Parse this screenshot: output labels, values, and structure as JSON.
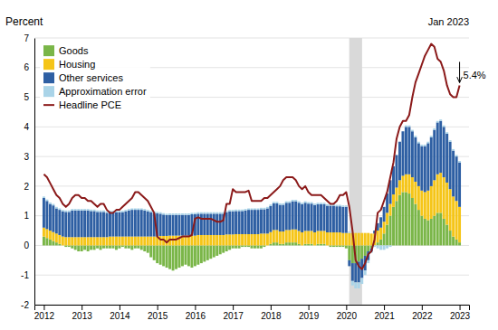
{
  "chart_data": {
    "type": "bar",
    "stacked": true,
    "y_label": "Percent",
    "xlim": [
      2011.75,
      2023.25
    ],
    "xticks": [
      2012,
      2013,
      2014,
      2015,
      2016,
      2017,
      2018,
      2019,
      2020,
      2021,
      2022,
      2023
    ],
    "ylim": [
      -2,
      7
    ],
    "yticks": [
      -2,
      -1,
      0,
      1,
      2,
      3,
      4,
      5,
      6,
      7
    ],
    "grid": true,
    "legend": "upper left",
    "recession": [
      2020.08,
      2020.42
    ],
    "annotations": [
      {
        "text": "Jan 2023"
      },
      {
        "text": "5.4%",
        "x": 2023.0,
        "y": 5.4
      }
    ],
    "x": [
      2012.0,
      2012.083,
      2012.167,
      2012.25,
      2012.333,
      2012.417,
      2012.5,
      2012.583,
      2012.667,
      2012.75,
      2012.833,
      2012.917,
      2013.0,
      2013.083,
      2013.167,
      2013.25,
      2013.333,
      2013.417,
      2013.5,
      2013.583,
      2013.667,
      2013.75,
      2013.833,
      2013.917,
      2014.0,
      2014.083,
      2014.167,
      2014.25,
      2014.333,
      2014.417,
      2014.5,
      2014.583,
      2014.667,
      2014.75,
      2014.833,
      2014.917,
      2015.0,
      2015.083,
      2015.167,
      2015.25,
      2015.333,
      2015.417,
      2015.5,
      2015.583,
      2015.667,
      2015.75,
      2015.833,
      2015.917,
      2016.0,
      2016.083,
      2016.167,
      2016.25,
      2016.333,
      2016.417,
      2016.5,
      2016.583,
      2016.667,
      2016.75,
      2016.833,
      2016.917,
      2017.0,
      2017.083,
      2017.167,
      2017.25,
      2017.333,
      2017.417,
      2017.5,
      2017.583,
      2017.667,
      2017.75,
      2017.833,
      2017.917,
      2018.0,
      2018.083,
      2018.167,
      2018.25,
      2018.333,
      2018.417,
      2018.5,
      2018.583,
      2018.667,
      2018.75,
      2018.833,
      2018.917,
      2019.0,
      2019.083,
      2019.167,
      2019.25,
      2019.333,
      2019.417,
      2019.5,
      2019.583,
      2019.667,
      2019.75,
      2019.833,
      2019.917,
      2020.0,
      2020.083,
      2020.167,
      2020.25,
      2020.333,
      2020.417,
      2020.5,
      2020.583,
      2020.667,
      2020.75,
      2020.833,
      2020.917,
      2021.0,
      2021.083,
      2021.167,
      2021.25,
      2021.333,
      2021.417,
      2021.5,
      2021.583,
      2021.667,
      2021.75,
      2021.833,
      2021.917,
      2022.0,
      2022.083,
      2022.167,
      2022.25,
      2022.333,
      2022.417,
      2022.5,
      2022.583,
      2022.667,
      2022.75,
      2022.833,
      2022.917,
      2023.0
    ],
    "series": [
      {
        "name": "Goods",
        "type": "bar",
        "color": "#7ab648",
        "values": [
          0.3,
          0.25,
          0.2,
          0.15,
          0.1,
          0.05,
          0.0,
          -0.05,
          -0.05,
          -0.1,
          -0.15,
          -0.2,
          -0.2,
          -0.15,
          -0.2,
          -0.15,
          -0.15,
          -0.1,
          -0.15,
          -0.1,
          -0.1,
          -0.1,
          -0.1,
          -0.15,
          -0.1,
          -0.05,
          -0.1,
          -0.1,
          -0.15,
          -0.1,
          -0.1,
          -0.15,
          -0.2,
          -0.25,
          -0.4,
          -0.5,
          -0.6,
          -0.65,
          -0.7,
          -0.75,
          -0.8,
          -0.85,
          -0.8,
          -0.75,
          -0.7,
          -0.65,
          -0.7,
          -0.75,
          -0.7,
          -0.65,
          -0.6,
          -0.55,
          -0.5,
          -0.45,
          -0.4,
          -0.35,
          -0.3,
          -0.25,
          -0.2,
          -0.15,
          -0.1,
          -0.1,
          -0.1,
          -0.05,
          -0.05,
          -0.05,
          -0.1,
          -0.1,
          -0.1,
          -0.1,
          -0.05,
          0.0,
          0.05,
          0.1,
          0.1,
          0.05,
          0.05,
          0.1,
          0.1,
          0.1,
          0.1,
          0.05,
          0.0,
          0.05,
          0.05,
          0.05,
          0.0,
          0.05,
          0.05,
          0.05,
          0.0,
          -0.05,
          -0.05,
          -0.05,
          -0.05,
          -0.05,
          -0.1,
          -0.5,
          -0.6,
          -0.6,
          -0.55,
          -0.45,
          -0.35,
          -0.2,
          -0.1,
          0.0,
          0.1,
          0.2,
          0.4,
          0.7,
          1.0,
          1.3,
          1.5,
          1.7,
          1.8,
          1.8,
          1.75,
          1.6,
          1.4,
          1.2,
          1.0,
          0.9,
          0.85,
          0.9,
          1.0,
          1.1,
          1.1,
          0.9,
          0.7,
          0.5,
          0.3,
          0.2,
          0.1
        ]
      },
      {
        "name": "Housing",
        "type": "bar",
        "color": "#f5c518",
        "values": [
          0.3,
          0.3,
          0.3,
          0.3,
          0.3,
          0.3,
          0.3,
          0.28,
          0.28,
          0.28,
          0.28,
          0.28,
          0.28,
          0.28,
          0.28,
          0.28,
          0.28,
          0.28,
          0.28,
          0.28,
          0.28,
          0.3,
          0.3,
          0.3,
          0.3,
          0.3,
          0.3,
          0.3,
          0.3,
          0.3,
          0.3,
          0.3,
          0.3,
          0.3,
          0.3,
          0.3,
          0.3,
          0.32,
          0.32,
          0.32,
          0.33,
          0.33,
          0.33,
          0.33,
          0.33,
          0.33,
          0.33,
          0.33,
          0.33,
          0.35,
          0.35,
          0.35,
          0.35,
          0.35,
          0.35,
          0.35,
          0.35,
          0.35,
          0.37,
          0.37,
          0.37,
          0.38,
          0.38,
          0.38,
          0.38,
          0.38,
          0.38,
          0.38,
          0.38,
          0.4,
          0.4,
          0.4,
          0.4,
          0.42,
          0.42,
          0.42,
          0.42,
          0.42,
          0.42,
          0.44,
          0.44,
          0.44,
          0.44,
          0.44,
          0.44,
          0.44,
          0.44,
          0.44,
          0.44,
          0.44,
          0.44,
          0.44,
          0.44,
          0.44,
          0.44,
          0.42,
          0.42,
          0.42,
          0.42,
          0.42,
          0.42,
          0.42,
          0.42,
          0.42,
          0.4,
          0.4,
          0.4,
          0.4,
          0.4,
          0.4,
          0.4,
          0.42,
          0.45,
          0.5,
          0.55,
          0.6,
          0.65,
          0.7,
          0.75,
          0.8,
          0.85,
          0.9,
          1.0,
          1.1,
          1.2,
          1.3,
          1.35,
          1.4,
          1.42,
          1.4,
          1.35,
          1.3,
          1.2
        ]
      },
      {
        "name": "Other services",
        "type": "bar",
        "color": "#2e5fa3",
        "values": [
          1.0,
          0.95,
          0.9,
          0.9,
          0.85,
          0.85,
          0.85,
          0.85,
          0.85,
          0.9,
          0.9,
          0.9,
          0.9,
          0.9,
          0.9,
          0.88,
          0.88,
          0.85,
          0.85,
          0.85,
          0.82,
          0.82,
          0.82,
          0.82,
          0.82,
          0.82,
          0.85,
          0.88,
          0.9,
          0.9,
          0.9,
          0.9,
          0.88,
          0.85,
          0.82,
          0.8,
          0.78,
          0.75,
          0.72,
          0.7,
          0.7,
          0.7,
          0.7,
          0.7,
          0.7,
          0.7,
          0.7,
          0.72,
          0.72,
          0.72,
          0.72,
          0.72,
          0.72,
          0.72,
          0.72,
          0.72,
          0.72,
          0.72,
          0.75,
          0.78,
          0.78,
          0.78,
          0.78,
          0.78,
          0.8,
          0.82,
          0.82,
          0.82,
          0.82,
          0.82,
          0.82,
          0.85,
          0.88,
          0.9,
          0.9,
          0.9,
          0.9,
          0.92,
          0.92,
          0.95,
          0.95,
          0.95,
          0.95,
          0.95,
          0.92,
          0.92,
          0.92,
          0.9,
          0.9,
          0.9,
          0.9,
          0.9,
          0.9,
          0.88,
          0.88,
          0.88,
          0.88,
          -0.2,
          -0.6,
          -0.65,
          -0.7,
          -0.65,
          -0.5,
          -0.3,
          -0.1,
          0.1,
          0.25,
          0.35,
          0.5,
          0.65,
          0.8,
          0.95,
          1.1,
          1.3,
          1.5,
          1.6,
          1.6,
          1.55,
          1.5,
          1.45,
          1.5,
          1.55,
          1.6,
          1.65,
          1.7,
          1.75,
          1.75,
          1.7,
          1.65,
          1.6,
          1.55,
          1.5,
          1.5
        ]
      },
      {
        "name": "Approximation error",
        "type": "bar",
        "color": "#aad4e8",
        "values": [
          0.05,
          0.05,
          0.05,
          0.05,
          0.05,
          0.05,
          0.05,
          0.05,
          0.05,
          0.05,
          0.05,
          0.05,
          0.05,
          0.05,
          0.05,
          0.05,
          0.05,
          0.05,
          0.05,
          0.05,
          0.05,
          0.05,
          0.05,
          0.05,
          0.05,
          0.05,
          0.05,
          0.05,
          0.05,
          0.05,
          0.05,
          0.05,
          0.05,
          0.05,
          0.05,
          0.05,
          0.05,
          0.05,
          0.05,
          0.05,
          0.05,
          0.05,
          0.05,
          0.05,
          0.05,
          0.05,
          0.05,
          0.05,
          0.05,
          0.05,
          0.05,
          0.05,
          0.05,
          0.05,
          0.05,
          0.05,
          0.05,
          0.05,
          0.05,
          0.05,
          0.05,
          0.05,
          0.05,
          0.05,
          0.05,
          0.05,
          0.05,
          0.05,
          0.05,
          0.05,
          0.05,
          0.05,
          0.05,
          0.05,
          0.05,
          0.05,
          0.05,
          0.05,
          0.05,
          0.05,
          0.05,
          0.05,
          0.05,
          0.05,
          0.05,
          0.05,
          0.05,
          0.05,
          0.05,
          0.05,
          0.05,
          0.05,
          0.05,
          0.05,
          0.05,
          0.05,
          0.05,
          0.05,
          -0.15,
          -0.2,
          -0.2,
          -0.2,
          -0.15,
          -0.1,
          -0.05,
          -0.05,
          -0.1,
          -0.15,
          -0.15,
          -0.1,
          -0.05,
          0.0,
          0.0,
          0.0,
          0.0,
          0.05,
          0.05,
          0.05,
          0.05,
          0.05,
          0.05,
          0.05,
          0.05,
          0.05,
          0.05,
          0.05,
          0.05,
          0.05,
          0.05,
          0.05,
          0.05,
          0.05,
          0.05
        ]
      },
      {
        "name": "Headline PCE",
        "type": "line",
        "color": "#8b1a1a",
        "values": [
          2.4,
          2.3,
          2.1,
          1.9,
          1.7,
          1.6,
          1.4,
          1.3,
          1.4,
          1.6,
          1.7,
          1.7,
          1.6,
          1.6,
          1.5,
          1.5,
          1.4,
          1.3,
          1.4,
          1.4,
          1.2,
          1.1,
          1.1,
          1.2,
          1.2,
          1.3,
          1.4,
          1.5,
          1.6,
          1.8,
          1.8,
          1.7,
          1.6,
          1.5,
          1.3,
          1.1,
          0.3,
          0.2,
          0.2,
          0.1,
          0.2,
          0.2,
          0.2,
          0.25,
          0.3,
          0.3,
          0.3,
          0.35,
          0.9,
          0.95,
          0.9,
          0.9,
          0.9,
          0.9,
          0.85,
          0.8,
          0.8,
          0.85,
          1.4,
          1.4,
          1.9,
          1.8,
          1.8,
          1.8,
          1.8,
          1.85,
          1.5,
          1.5,
          1.5,
          1.5,
          1.6,
          1.6,
          1.7,
          1.8,
          1.9,
          2.0,
          2.2,
          2.3,
          2.3,
          2.3,
          2.2,
          2.0,
          1.9,
          2.0,
          1.8,
          1.7,
          1.7,
          1.7,
          1.7,
          1.6,
          1.5,
          1.4,
          1.4,
          1.5,
          1.7,
          1.7,
          1.8,
          1.3,
          0.5,
          -0.5,
          -0.7,
          -0.8,
          -0.6,
          -0.3,
          -0.2,
          0.2,
          1.1,
          1.2,
          1.5,
          1.8,
          2.3,
          2.8,
          3.6,
          4.0,
          4.2,
          4.2,
          4.4,
          5.0,
          5.5,
          5.8,
          6.1,
          6.4,
          6.6,
          6.8,
          6.7,
          6.3,
          6.2,
          5.9,
          5.4,
          5.1,
          5.0,
          5.0,
          5.4
        ]
      }
    ]
  }
}
